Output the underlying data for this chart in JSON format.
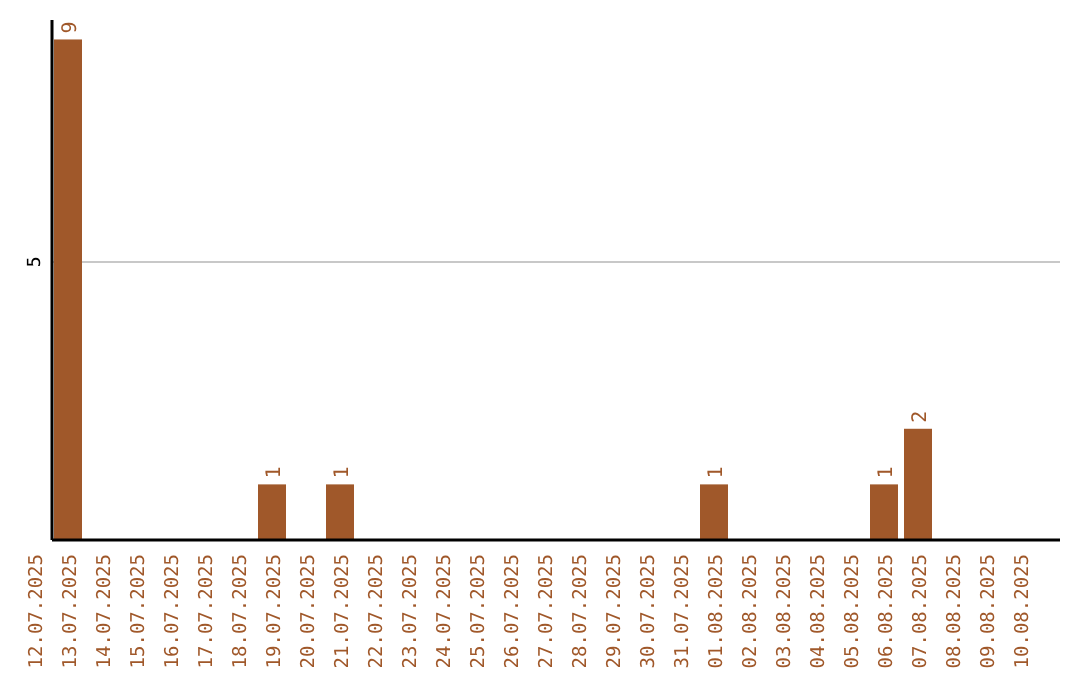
{
  "chart_data": {
    "type": "bar",
    "categories": [
      "12.07.2025",
      "13.07.2025",
      "14.07.2025",
      "15.07.2025",
      "16.07.2025",
      "17.07.2025",
      "18.07.2025",
      "19.07.2025",
      "20.07.2025",
      "21.07.2025",
      "22.07.2025",
      "23.07.2025",
      "24.07.2025",
      "25.07.2025",
      "26.07.2025",
      "27.07.2025",
      "28.07.2025",
      "29.07.2025",
      "30.07.2025",
      "31.07.2025",
      "01.08.2025",
      "02.08.2025",
      "03.08.2025",
      "04.08.2025",
      "05.08.2025",
      "06.08.2025",
      "07.08.2025",
      "08.08.2025",
      "09.08.2025",
      "10.08.2025"
    ],
    "values": [
      0,
      9,
      0,
      0,
      0,
      0,
      0,
      1,
      0,
      1,
      0,
      0,
      0,
      0,
      0,
      0,
      0,
      0,
      0,
      0,
      1,
      0,
      0,
      0,
      0,
      1,
      2,
      0,
      0,
      0
    ],
    "value_labels": [
      null,
      "9",
      null,
      null,
      null,
      null,
      null,
      "1",
      null,
      "1",
      null,
      null,
      null,
      null,
      null,
      null,
      null,
      null,
      null,
      null,
      "1",
      null,
      null,
      null,
      null,
      "1",
      "2",
      null,
      null,
      null
    ],
    "color": "#a0582a",
    "ylim": [
      0,
      9.35
    ],
    "yticks": [
      5
    ],
    "grid": "y"
  }
}
